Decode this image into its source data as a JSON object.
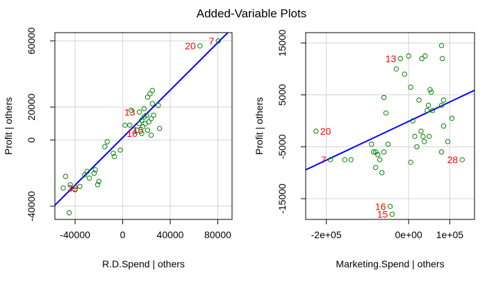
{
  "title": "Added-Variable Plots",
  "colors": {
    "points": "#008000",
    "labels": "#ff0000",
    "fit": "#0000ff",
    "grid": "#d3d3d3"
  },
  "chart_data": [
    {
      "type": "scatter",
      "xlabel": "R.D.Spend | others",
      "ylabel": "Profit | others",
      "xlim": [
        -57000,
        92000
      ],
      "ylim": [
        -48000,
        65000
      ],
      "xticks": [
        -40000,
        0,
        40000,
        80000
      ],
      "xtick_labels": [
        "-40000",
        "0",
        "40000",
        "80000"
      ],
      "yticks": [
        -40000,
        0,
        20000,
        60000
      ],
      "ytick_labels": [
        "-40000",
        "0",
        "20000",
        "60000"
      ],
      "grid": true,
      "fit_line": {
        "slope": 0.718,
        "intercept": 1500
      },
      "points": [
        {
          "x": 80500,
          "y": 60000,
          "label": "7"
        },
        {
          "x": 65000,
          "y": 57000,
          "label": "20"
        },
        {
          "x": -50000,
          "y": -29000,
          "label": "39"
        },
        {
          "x": 14000,
          "y": 17000,
          "label": "13"
        },
        {
          "x": 21000,
          "y": 6000,
          "label": "15"
        },
        {
          "x": 16000,
          "y": 4000,
          "label": "16"
        },
        {
          "x": -48000,
          "y": -22000
        },
        {
          "x": -44000,
          "y": -27000
        },
        {
          "x": -40000,
          "y": -30000
        },
        {
          "x": -36000,
          "y": -28000
        },
        {
          "x": -32000,
          "y": -21000
        },
        {
          "x": -30000,
          "y": -19000
        },
        {
          "x": -28000,
          "y": -23000
        },
        {
          "x": -24000,
          "y": -20000
        },
        {
          "x": -23000,
          "y": -18000
        },
        {
          "x": -20000,
          "y": -25000
        },
        {
          "x": -21000,
          "y": -27000
        },
        {
          "x": -45000,
          "y": -44000
        },
        {
          "x": -15000,
          "y": -4000
        },
        {
          "x": -13000,
          "y": -1000
        },
        {
          "x": -8000,
          "y": -8000
        },
        {
          "x": -7000,
          "y": -10000
        },
        {
          "x": -2000,
          "y": -6000
        },
        {
          "x": 2000,
          "y": 9000
        },
        {
          "x": 6000,
          "y": 9000
        },
        {
          "x": 7000,
          "y": 18000
        },
        {
          "x": 12000,
          "y": 6000
        },
        {
          "x": 14000,
          "y": 10000
        },
        {
          "x": 16000,
          "y": 12000
        },
        {
          "x": 17000,
          "y": 8000
        },
        {
          "x": 18000,
          "y": 14000
        },
        {
          "x": 19000,
          "y": 10000
        },
        {
          "x": 20000,
          "y": 15000
        },
        {
          "x": 21000,
          "y": 26000
        },
        {
          "x": 22000,
          "y": 11000
        },
        {
          "x": 23000,
          "y": 28000
        },
        {
          "x": 24000,
          "y": 3000
        },
        {
          "x": 25000,
          "y": 22000
        },
        {
          "x": 25000,
          "y": 30000
        },
        {
          "x": 26000,
          "y": 15000
        },
        {
          "x": 24000,
          "y": 13000
        },
        {
          "x": 30000,
          "y": 21000
        },
        {
          "x": 31000,
          "y": 7000
        },
        {
          "x": 18000,
          "y": 19000
        }
      ]
    },
    {
      "type": "scatter",
      "xlabel": "Marketing.Spend | others",
      "ylabel": "Profit | others",
      "xlim": [
        -250000,
        160000
      ],
      "ylim": [
        -19000,
        17000
      ],
      "xticks": [
        -200000,
        0,
        100000
      ],
      "xtick_labels": [
        "-2e+05",
        "0e+00",
        "1e+05"
      ],
      "yticks": [
        -15000,
        -5000,
        5000,
        15000
      ],
      "ytick_labels": [
        "-15000",
        "-5000",
        "5000",
        "15000"
      ],
      "grid": true,
      "fit_line": {
        "slope": 0.0374,
        "intercept": -100
      },
      "points": [
        {
          "x": -225000,
          "y": -2000,
          "label": "20"
        },
        {
          "x": -190000,
          "y": -7500,
          "label": "7"
        },
        {
          "x": -20000,
          "y": 12000,
          "label": "13"
        },
        {
          "x": -45000,
          "y": -16500,
          "label": "16"
        },
        {
          "x": -40000,
          "y": -18000,
          "label": "15"
        },
        {
          "x": 130000,
          "y": -7500,
          "label": "28"
        },
        {
          "x": -155000,
          "y": -7500
        },
        {
          "x": -90000,
          "y": -4500
        },
        {
          "x": -85000,
          "y": -6000
        },
        {
          "x": -80000,
          "y": -9000
        },
        {
          "x": -75000,
          "y": -6500
        },
        {
          "x": -70000,
          "y": -7500
        },
        {
          "x": -65000,
          "y": -10000
        },
        {
          "x": -60000,
          "y": 4500
        },
        {
          "x": -55000,
          "y": 1500
        },
        {
          "x": -30000,
          "y": 10000
        },
        {
          "x": -10000,
          "y": 9000
        },
        {
          "x": 0,
          "y": 12500
        },
        {
          "x": 5000,
          "y": 6500
        },
        {
          "x": 10000,
          "y": 0
        },
        {
          "x": 15000,
          "y": -3000
        },
        {
          "x": 20000,
          "y": -5000
        },
        {
          "x": 25000,
          "y": 4000
        },
        {
          "x": 30000,
          "y": -2000
        },
        {
          "x": 32000,
          "y": 12000
        },
        {
          "x": 35000,
          "y": -3000
        },
        {
          "x": 38000,
          "y": -4000
        },
        {
          "x": 40000,
          "y": 12500
        },
        {
          "x": 45000,
          "y": 2000
        },
        {
          "x": 48000,
          "y": 3000
        },
        {
          "x": 50000,
          "y": -3000
        },
        {
          "x": 52000,
          "y": 6000
        },
        {
          "x": 55000,
          "y": 5500
        },
        {
          "x": 58000,
          "y": 2000
        },
        {
          "x": 80000,
          "y": 14500
        },
        {
          "x": 82000,
          "y": 12000
        },
        {
          "x": 80000,
          "y": 3000
        },
        {
          "x": 85000,
          "y": 4000
        },
        {
          "x": 85000,
          "y": -1000
        },
        {
          "x": 80000,
          "y": -6000
        },
        {
          "x": 95000,
          "y": -4000
        },
        {
          "x": 105000,
          "y": 500
        },
        {
          "x": -140000,
          "y": -7500
        },
        {
          "x": -80000,
          "y": -6000
        },
        {
          "x": -50000,
          "y": -4500
        },
        {
          "x": -60000,
          "y": -6000
        },
        {
          "x": 5000,
          "y": -8000
        }
      ]
    }
  ]
}
